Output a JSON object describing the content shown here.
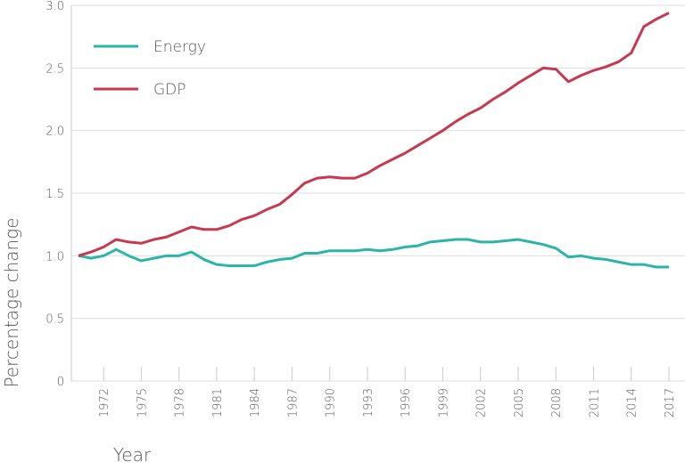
{
  "chart_data": {
    "type": "line",
    "x_label": "Year",
    "y_label": "Percentage change",
    "x": [
      1970,
      1971,
      1972,
      1973,
      1974,
      1975,
      1976,
      1977,
      1978,
      1979,
      1980,
      1981,
      1982,
      1983,
      1984,
      1985,
      1986,
      1987,
      1988,
      1989,
      1990,
      1991,
      1992,
      1993,
      1994,
      1995,
      1996,
      1997,
      1998,
      1999,
      2000,
      2001,
      2002,
      2003,
      2004,
      2005,
      2006,
      2007,
      2008,
      2009,
      2010,
      2011,
      2012,
      2013,
      2014,
      2015,
      2016,
      2017
    ],
    "series": [
      {
        "name": "Energy",
        "color": "#2ab5a8",
        "values": [
          1.0,
          0.98,
          1.0,
          1.05,
          1.0,
          0.96,
          0.98,
          1.0,
          1.0,
          1.03,
          0.97,
          0.93,
          0.92,
          0.92,
          0.92,
          0.95,
          0.97,
          0.98,
          1.02,
          1.02,
          1.04,
          1.04,
          1.04,
          1.05,
          1.04,
          1.05,
          1.07,
          1.08,
          1.11,
          1.12,
          1.13,
          1.13,
          1.11,
          1.11,
          1.12,
          1.13,
          1.11,
          1.09,
          1.06,
          0.99,
          1.0,
          0.98,
          0.97,
          0.95,
          0.93,
          0.93,
          0.91,
          0.91
        ]
      },
      {
        "name": "GDP",
        "color": "#c7394f",
        "values": [
          1.0,
          1.03,
          1.07,
          1.13,
          1.11,
          1.1,
          1.13,
          1.15,
          1.19,
          1.23,
          1.21,
          1.21,
          1.24,
          1.29,
          1.32,
          1.37,
          1.41,
          1.49,
          1.58,
          1.62,
          1.63,
          1.62,
          1.62,
          1.66,
          1.72,
          1.77,
          1.82,
          1.88,
          1.94,
          2.0,
          2.07,
          2.13,
          2.18,
          2.25,
          2.31,
          2.38,
          2.44,
          2.5,
          2.49,
          2.39,
          2.44,
          2.48,
          2.51,
          2.55,
          2.62,
          2.83,
          2.89,
          2.94
        ]
      }
    ],
    "xlim": [
      1970,
      2017
    ],
    "xticks": [
      1972,
      1975,
      1978,
      1981,
      1984,
      1987,
      1990,
      1993,
      1996,
      1999,
      2002,
      2005,
      2008,
      2011,
      2014,
      2017
    ],
    "ylim": [
      0,
      3
    ],
    "yticks": [
      0,
      0.5,
      {
        "value": 1,
        "label": "1.0"
      },
      1.5,
      {
        "value": 2,
        "label": "2.0"
      },
      2.5,
      {
        "value": 3,
        "label": "3.0"
      }
    ],
    "grid": true,
    "legend": "top-left"
  }
}
